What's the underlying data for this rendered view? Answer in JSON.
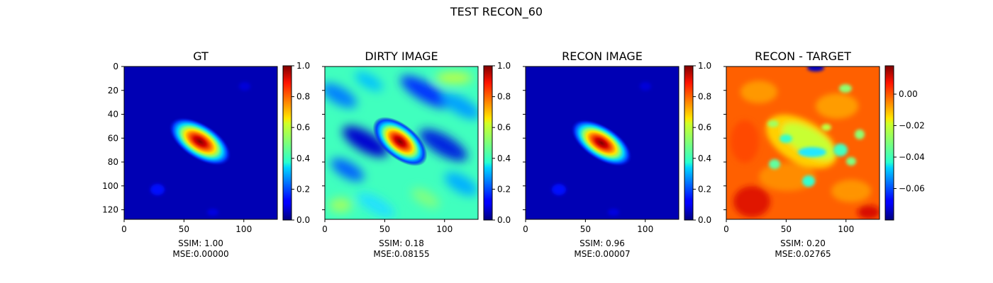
{
  "figure": {
    "suptitle": "TEST RECON_60"
  },
  "colormap": "jet",
  "chart_data": [
    {
      "type": "heatmap",
      "title": "GT",
      "xlim": [
        0,
        128
      ],
      "ylim": [
        128,
        0
      ],
      "x_ticks": [
        0,
        50,
        100
      ],
      "y_ticks": [
        0,
        20,
        40,
        60,
        80,
        100,
        120
      ],
      "show_y_tick_labels": true,
      "colorbar": {
        "min": 0.0,
        "max": 1.0,
        "ticks": [
          "0.0",
          "0.2",
          "0.4",
          "0.6",
          "0.8",
          "1.0"
        ]
      },
      "caption_ssim": "SSIM: 1.00",
      "caption_mse": "MSE:0.00000"
    },
    {
      "type": "heatmap",
      "title": "DIRTY IMAGE",
      "xlim": [
        0,
        128
      ],
      "ylim": [
        128,
        0
      ],
      "x_ticks": [
        0,
        50,
        100
      ],
      "y_ticks": [
        0,
        20,
        40,
        60,
        80,
        100,
        120
      ],
      "show_y_tick_labels": false,
      "colorbar": {
        "min": 0.0,
        "max": 1.0,
        "ticks": [
          "0.0",
          "0.2",
          "0.4",
          "0.6",
          "0.8",
          "1.0"
        ]
      },
      "caption_ssim": "SSIM: 0.18",
      "caption_mse": "MSE:0.08155"
    },
    {
      "type": "heatmap",
      "title": "RECON IMAGE",
      "xlim": [
        0,
        128
      ],
      "ylim": [
        128,
        0
      ],
      "x_ticks": [
        0,
        50,
        100
      ],
      "y_ticks": [
        0,
        20,
        40,
        60,
        80,
        100,
        120
      ],
      "show_y_tick_labels": false,
      "colorbar": {
        "min": 0.0,
        "max": 1.0,
        "ticks": [
          "0.0",
          "0.2",
          "0.4",
          "0.6",
          "0.8",
          "1.0"
        ]
      },
      "caption_ssim": "SSIM: 0.96",
      "caption_mse": "MSE:0.00007"
    },
    {
      "type": "heatmap",
      "title": "RECON - TARGET",
      "xlim": [
        0,
        128
      ],
      "ylim": [
        128,
        0
      ],
      "x_ticks": [
        0,
        50,
        100
      ],
      "y_ticks": [
        0,
        20,
        40,
        60,
        80,
        100,
        120
      ],
      "show_y_tick_labels": false,
      "colorbar": {
        "min": -0.08,
        "max": 0.018,
        "ticks": [
          "0.00",
          "−0.02",
          "−0.04",
          "−0.06"
        ],
        "tick_values": [
          0.0,
          -0.02,
          -0.04,
          -0.06
        ]
      },
      "caption_ssim": "SSIM: 0.20",
      "caption_mse": "MSE:0.02765"
    }
  ]
}
